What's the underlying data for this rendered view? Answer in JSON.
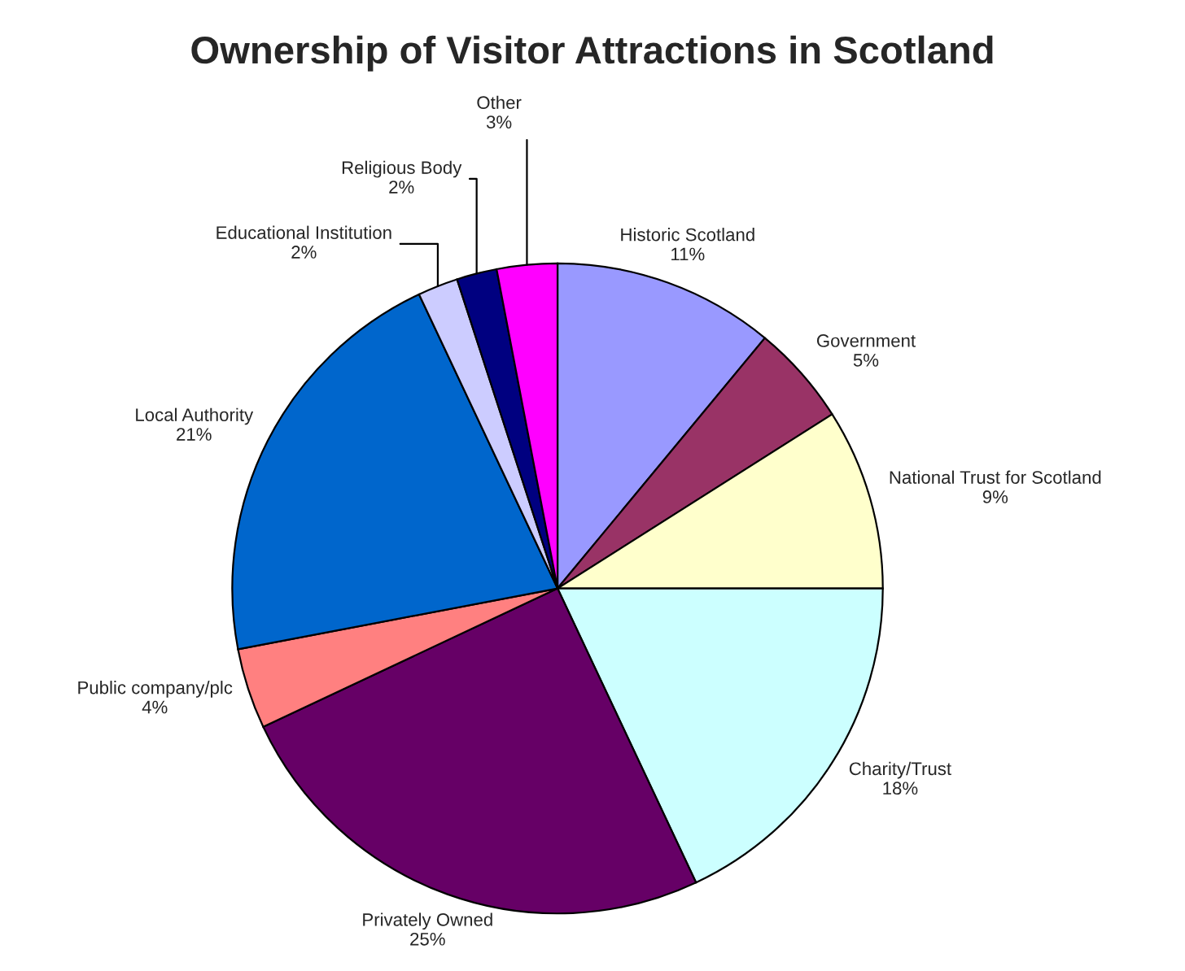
{
  "chart_data": {
    "type": "pie",
    "title": "Ownership of Visitor Attractions in Scotland",
    "categories": [
      "Historic Scotland",
      "Government",
      "National Trust for Scotland",
      "Charity/Trust",
      "Privately Owned",
      "Public company/plc",
      "Local Authority",
      "Educational Institution",
      "Religious Body",
      "Other"
    ],
    "values": [
      11,
      5,
      9,
      18,
      25,
      4,
      21,
      2,
      2,
      3
    ],
    "value_labels": [
      "11%",
      "5%",
      "9%",
      "18%",
      "25%",
      "4%",
      "21%",
      "2%",
      "2%",
      "3%"
    ],
    "colors": [
      "#9999ff",
      "#993366",
      "#ffffcc",
      "#ccffff",
      "#660066",
      "#ff8080",
      "#0066cc",
      "#ccccff",
      "#000080",
      "#ff00ff"
    ],
    "legend": false
  }
}
